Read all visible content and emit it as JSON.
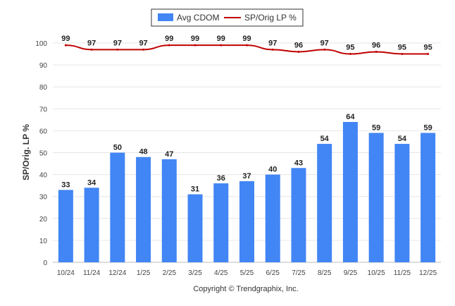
{
  "chart_data": {
    "type": "bar",
    "categories": [
      "10/24",
      "11/24",
      "12/24",
      "1/25",
      "2/25",
      "3/25",
      "4/25",
      "5/25",
      "6/25",
      "7/25",
      "8/25",
      "9/25",
      "10/25",
      "11/25",
      "12/25"
    ],
    "series": [
      {
        "name": "Avg CDOM",
        "type": "bar",
        "color": "#4285f4",
        "values": [
          33,
          34,
          50,
          48,
          47,
          31,
          36,
          37,
          40,
          43,
          54,
          64,
          59,
          54,
          59
        ]
      },
      {
        "name": "SP/Orig LP %",
        "type": "line",
        "color": "#c00000",
        "values": [
          99,
          97,
          97,
          97,
          99,
          99,
          99,
          99,
          97,
          96,
          97,
          95,
          96,
          95,
          95
        ]
      }
    ],
    "ylabel": "SP/Orig. LP %",
    "ylim": [
      0,
      100
    ],
    "yticks": [
      0,
      10,
      20,
      30,
      40,
      50,
      60,
      70,
      80,
      90,
      100
    ],
    "grid": true,
    "legend": "top-center",
    "credit": "Copyright © Trendgraphix, Inc."
  }
}
